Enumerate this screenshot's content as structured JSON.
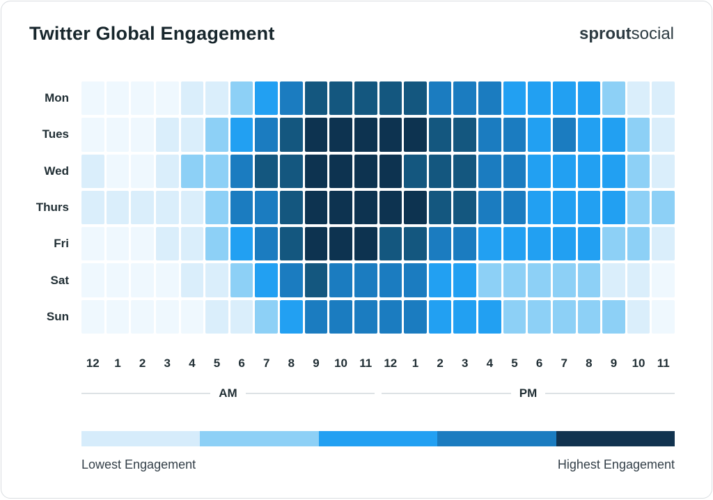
{
  "header": {
    "title": "Twitter Global Engagement",
    "logo": {
      "bold": "sprout",
      "light": "social"
    }
  },
  "chart_data": {
    "type": "heatmap",
    "title": "Twitter Global Engagement",
    "rows": [
      "Mon",
      "Tues",
      "Wed",
      "Thurs",
      "Fri",
      "Sat",
      "Sun"
    ],
    "columns": [
      "12",
      "1",
      "2",
      "3",
      "4",
      "5",
      "6",
      "7",
      "8",
      "9",
      "10",
      "11",
      "12",
      "1",
      "2",
      "3",
      "4",
      "5",
      "6",
      "7",
      "8",
      "9",
      "10",
      "11"
    ],
    "column_groups": [
      {
        "label": "AM",
        "start": 0,
        "end": 11
      },
      {
        "label": "PM",
        "start": 12,
        "end": 23
      }
    ],
    "value_scale": "engagement level, 0 = lowest to 6 = highest",
    "values": [
      [
        0,
        0,
        0,
        0,
        1,
        1,
        2,
        3,
        4,
        5,
        5,
        5,
        5,
        5,
        4,
        4,
        4,
        3,
        3,
        3,
        3,
        2,
        1,
        1
      ],
      [
        0,
        0,
        0,
        1,
        1,
        2,
        3,
        4,
        5,
        6,
        6,
        6,
        6,
        6,
        5,
        5,
        4,
        4,
        3,
        4,
        3,
        3,
        2,
        1
      ],
      [
        1,
        0,
        0,
        1,
        2,
        2,
        4,
        5,
        5,
        6,
        6,
        6,
        6,
        5,
        5,
        5,
        4,
        4,
        3,
        3,
        3,
        3,
        2,
        1
      ],
      [
        1,
        1,
        1,
        1,
        1,
        2,
        4,
        4,
        5,
        6,
        6,
        6,
        6,
        6,
        5,
        5,
        4,
        4,
        3,
        3,
        3,
        3,
        2,
        2
      ],
      [
        0,
        0,
        0,
        1,
        1,
        2,
        3,
        4,
        5,
        6,
        6,
        6,
        5,
        5,
        4,
        4,
        3,
        3,
        3,
        3,
        3,
        2,
        2,
        1
      ],
      [
        0,
        0,
        0,
        0,
        1,
        1,
        2,
        3,
        4,
        5,
        4,
        4,
        4,
        4,
        3,
        3,
        2,
        2,
        2,
        2,
        2,
        1,
        1,
        0
      ],
      [
        0,
        0,
        0,
        0,
        0,
        1,
        1,
        2,
        3,
        4,
        4,
        4,
        4,
        4,
        3,
        3,
        3,
        2,
        2,
        2,
        2,
        2,
        1,
        0
      ]
    ],
    "palette": [
      "#eff8fe",
      "#daeefb",
      "#8dd0f6",
      "#22a0f2",
      "#1b7cc0",
      "#14577f",
      "#0d3350"
    ],
    "legend": {
      "colors": [
        "#d6ecfb",
        "#8dd0f6",
        "#22a0f2",
        "#1b7cc0",
        "#11334f"
      ],
      "low_label": "Lowest Engagement",
      "high_label": "Highest Engagement",
      "position": "bottom"
    },
    "grid": "off",
    "notes": "weekday-by-hour engagement heatmap, 7 rows x 24 columns"
  }
}
